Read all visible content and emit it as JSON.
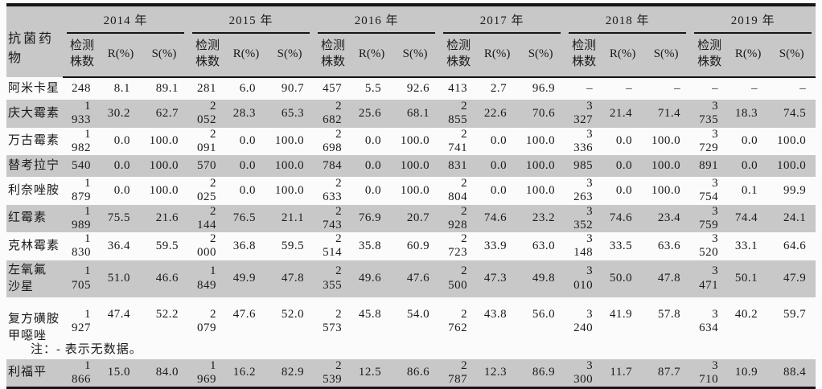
{
  "table": {
    "drug_header": "抗菌药物",
    "years": [
      "2014 年",
      "2015 年",
      "2016 年",
      "2017 年",
      "2018 年",
      "2019 年"
    ],
    "sub_headers": {
      "count_lines": [
        "检测",
        "株数"
      ],
      "r": "R(%)",
      "s": "S(%)"
    },
    "rows": [
      {
        "drug": "阿米卡星",
        "drug_lines": [
          "阿米卡星"
        ],
        "cells": [
          [
            "248",
            "8.1",
            "89.1"
          ],
          [
            "281",
            "6.0",
            "90.7"
          ],
          [
            "457",
            "5.5",
            "92.6"
          ],
          [
            "413",
            "2.7",
            "96.9"
          ],
          [
            "–",
            "–",
            "–"
          ],
          [
            "–",
            "–",
            "–"
          ]
        ]
      },
      {
        "drug": "庆大霉素",
        "drug_lines": [
          "庆大霉素"
        ],
        "cells": [
          [
            "1 933",
            "30.2",
            "62.7"
          ],
          [
            "2 052",
            "28.3",
            "65.3"
          ],
          [
            "2 682",
            "25.6",
            "68.1"
          ],
          [
            "2 855",
            "22.6",
            "70.6"
          ],
          [
            "3 327",
            "21.4",
            "71.4"
          ],
          [
            "3 735",
            "18.3",
            "74.5"
          ]
        ]
      },
      {
        "drug": "万古霉素",
        "drug_lines": [
          "万古霉素"
        ],
        "cells": [
          [
            "1 982",
            "0.0",
            "100.0"
          ],
          [
            "2 091",
            "0.0",
            "100.0"
          ],
          [
            "2 698",
            "0.0",
            "100.0"
          ],
          [
            "2 741",
            "0.0",
            "100.0"
          ],
          [
            "3 336",
            "0.0",
            "100.0"
          ],
          [
            "3 729",
            "0.0",
            "100.0"
          ]
        ]
      },
      {
        "drug": "替考拉宁",
        "drug_lines": [
          "替考拉宁"
        ],
        "cells": [
          [
            "540",
            "0.0",
            "100.0"
          ],
          [
            "570",
            "0.0",
            "100.0"
          ],
          [
            "784",
            "0.0",
            "100.0"
          ],
          [
            "831",
            "0.0",
            "100.0"
          ],
          [
            "985",
            "0.0",
            "100.0"
          ],
          [
            "891",
            "0.0",
            "100.0"
          ]
        ]
      },
      {
        "drug": "利奈唑胺",
        "drug_lines": [
          "利奈唑胺"
        ],
        "cells": [
          [
            "1 879",
            "0.0",
            "100.0"
          ],
          [
            "2 025",
            "0.0",
            "100.0"
          ],
          [
            "2 633",
            "0.0",
            "100.0"
          ],
          [
            "2 804",
            "0.0",
            "100.0"
          ],
          [
            "3 263",
            "0.0",
            "100.0"
          ],
          [
            "3 754",
            "0.1",
            "99.9"
          ]
        ]
      },
      {
        "drug": "红霉素",
        "drug_lines": [
          "红霉素"
        ],
        "cells": [
          [
            "1 989",
            "75.5",
            "21.6"
          ],
          [
            "2 144",
            "76.5",
            "21.1"
          ],
          [
            "2 743",
            "76.9",
            "20.7"
          ],
          [
            "2 928",
            "74.6",
            "23.2"
          ],
          [
            "3 352",
            "74.6",
            "23.4"
          ],
          [
            "3 759",
            "74.4",
            "24.1"
          ]
        ]
      },
      {
        "drug": "克林霉素",
        "drug_lines": [
          "克林霉素"
        ],
        "cells": [
          [
            "1 830",
            "36.4",
            "59.5"
          ],
          [
            "2 000",
            "36.8",
            "59.5"
          ],
          [
            "2 514",
            "35.8",
            "60.9"
          ],
          [
            "2 723",
            "33.9",
            "63.0"
          ],
          [
            "3 148",
            "33.5",
            "63.6"
          ],
          [
            "3 520",
            "33.1",
            "64.6"
          ]
        ]
      },
      {
        "drug": "左氧氟沙星",
        "drug_lines": [
          "左氧氟",
          "沙星"
        ],
        "cells": [
          [
            "1 705",
            "51.0",
            "46.6"
          ],
          [
            "1 849",
            "49.9",
            "47.8"
          ],
          [
            "2 355",
            "49.6",
            "47.6"
          ],
          [
            "2 500",
            "47.3",
            "49.8"
          ],
          [
            "3 010",
            "50.0",
            "47.8"
          ],
          [
            "3 471",
            "50.1",
            "47.9"
          ]
        ]
      },
      {
        "drug": "复方磺胺甲噁唑",
        "drug_lines": [
          "复方磺胺",
          "甲噁唑"
        ],
        "cells": [
          [
            "1 927",
            "47.4",
            "52.2"
          ],
          [
            "2 079",
            "47.6",
            "52.0"
          ],
          [
            "2 573",
            "45.8",
            "54.0"
          ],
          [
            "2 762",
            "43.8",
            "56.0"
          ],
          [
            "3 240",
            "41.9",
            "57.8"
          ],
          [
            "3 634",
            "40.2",
            "59.7"
          ]
        ]
      },
      {
        "drug": "利福平",
        "drug_lines": [
          "利福平"
        ],
        "cells": [
          [
            "1 866",
            "15.0",
            "84.0"
          ],
          [
            "1 969",
            "16.2",
            "82.9"
          ],
          [
            "2 539",
            "12.5",
            "86.6"
          ],
          [
            "2 787",
            "12.3",
            "86.9"
          ],
          [
            "3 300",
            "11.7",
            "87.7"
          ],
          [
            "3 710",
            "10.9",
            "88.4"
          ]
        ]
      }
    ]
  },
  "note": "注：- 表示无数据。",
  "colors": {
    "stripe_gray": "#c8c8c8",
    "rule_black": "#151515",
    "page_background": "#fbfbfb"
  }
}
